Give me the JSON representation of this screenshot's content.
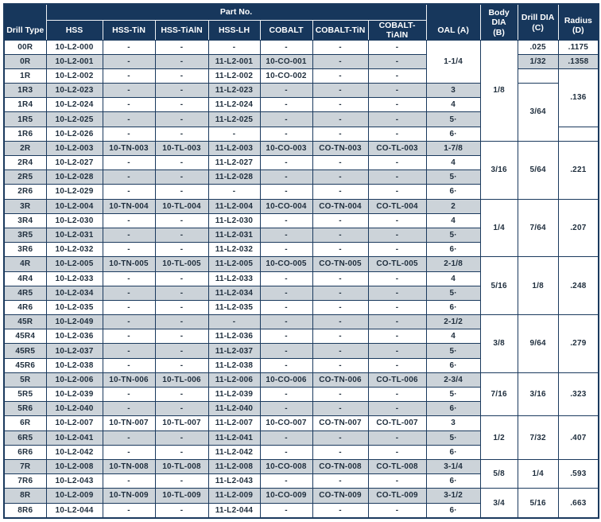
{
  "colors": {
    "header_bg": "#17375C",
    "stripe": "#CCD3D9",
    "grid": "#1B3A5E",
    "text": "#1F2E3D",
    "header_text": "#FFFFFF"
  },
  "table": {
    "header": {
      "drill_type": "Drill Type",
      "part_group": "Part No.",
      "part_columns": [
        "HSS",
        "HSS-TiN",
        "HSS-TiAlN",
        "HSS-LH",
        "COBALT",
        "COBALT-TiN",
        "COBALT-TiAlN"
      ],
      "oal": "OAL (A)",
      "body_dia_line1": "Body DIA",
      "body_dia_line2": "(B)",
      "drill_dia_line1": "Drill DIA",
      "drill_dia_line2": "(C)",
      "radius": "Radius (D)"
    },
    "rows": [
      {
        "type": "00R",
        "parts": [
          "10-L2-000",
          "-",
          "-",
          "-",
          "-",
          "-",
          "-"
        ],
        "oal": [
          "1-1/4",
          3
        ],
        "body": [
          "1/8",
          7
        ],
        "drill": ".025",
        "radius": ".1175"
      },
      {
        "type": "0R",
        "parts": [
          "10-L2-001",
          "-",
          "-",
          "11-L2-001",
          "10-CO-001",
          "-",
          "-"
        ],
        "drill": "1/32",
        "radius": ".1358"
      },
      {
        "type": "1R",
        "parts": [
          "10-L2-002",
          "-",
          "-",
          "11-L2-002",
          "10-CO-002",
          "-",
          "-"
        ],
        "drill": "",
        "radius": [
          ".136",
          4
        ]
      },
      {
        "type": "1R3",
        "parts": [
          "10-L2-023",
          "-",
          "-",
          "11-L2-023",
          "-",
          "-",
          "-"
        ],
        "oal": "3",
        "drill": [
          "3/64",
          4
        ]
      },
      {
        "type": "1R4",
        "parts": [
          "10-L2-024",
          "-",
          "-",
          "11-L2-024",
          "-",
          "-",
          "-"
        ],
        "oal": "4"
      },
      {
        "type": "1R5",
        "parts": [
          "10-L2-025",
          "-",
          "-",
          "11-L2-025",
          "-",
          "-",
          "-"
        ],
        "oal": "5·"
      },
      {
        "type": "1R6",
        "parts": [
          "10-L2-026",
          "-",
          "-",
          "-",
          "-",
          "-",
          "-"
        ],
        "oal": "6·",
        "radius": ""
      },
      {
        "type": "2R",
        "parts": [
          "10-L2-003",
          "10-TN-003",
          "10-TL-003",
          "11-L2-003",
          "10-CO-003",
          "CO-TN-003",
          "CO-TL-003"
        ],
        "oal": "1-7/8",
        "body": [
          "3/16",
          4
        ],
        "drill": [
          "5/64",
          4
        ],
        "radius": [
          ".221",
          4
        ]
      },
      {
        "type": "2R4",
        "parts": [
          "10-L2-027",
          "-",
          "-",
          "11-L2-027",
          "-",
          "-",
          "-"
        ],
        "oal": "4"
      },
      {
        "type": "2R5",
        "parts": [
          "10-L2-028",
          "-",
          "-",
          "11-L2-028",
          "-",
          "-",
          "-"
        ],
        "oal": "5·"
      },
      {
        "type": "2R6",
        "parts": [
          "10-L2-029",
          "-",
          "-",
          "-",
          "-",
          "-",
          "-"
        ],
        "oal": "6·"
      },
      {
        "type": "3R",
        "parts": [
          "10-L2-004",
          "10-TN-004",
          "10-TL-004",
          "11-L2-004",
          "10-CO-004",
          "CO-TN-004",
          "CO-TL-004"
        ],
        "oal": "2",
        "body": [
          "1/4",
          4
        ],
        "drill": [
          "7/64",
          4
        ],
        "radius": [
          ".207",
          4
        ]
      },
      {
        "type": "3R4",
        "parts": [
          "10-L2-030",
          "-",
          "-",
          "11-L2-030",
          "-",
          "-",
          "-"
        ],
        "oal": "4"
      },
      {
        "type": "3R5",
        "parts": [
          "10-L2-031",
          "-",
          "-",
          "11-L2-031",
          "-",
          "-",
          "-"
        ],
        "oal": "5·"
      },
      {
        "type": "3R6",
        "parts": [
          "10-L2-032",
          "-",
          "-",
          "11-L2-032",
          "-",
          "-",
          "-"
        ],
        "oal": "6·"
      },
      {
        "type": "4R",
        "parts": [
          "10-L2-005",
          "10-TN-005",
          "10-TL-005",
          "11-L2-005",
          "10-CO-005",
          "CO-TN-005",
          "CO-TL-005"
        ],
        "oal": "2-1/8",
        "body": [
          "5/16",
          4
        ],
        "drill": [
          "1/8",
          4
        ],
        "radius": [
          ".248",
          4
        ]
      },
      {
        "type": "4R4",
        "parts": [
          "10-L2-033",
          "-",
          "-",
          "11-L2-033",
          "-",
          "-",
          "-"
        ],
        "oal": "4"
      },
      {
        "type": "4R5",
        "parts": [
          "10-L2-034",
          "-",
          "-",
          "11-L2-034",
          "-",
          "-",
          "-"
        ],
        "oal": "5·"
      },
      {
        "type": "4R6",
        "parts": [
          "10-L2-035",
          "-",
          "-",
          "11-L2-035",
          "-",
          "-",
          "-"
        ],
        "oal": "6·"
      },
      {
        "type": "45R",
        "parts": [
          "10-L2-049",
          "-",
          "-",
          "-",
          "-",
          "-",
          "-"
        ],
        "oal": "2-1/2",
        "body": [
          "3/8",
          4
        ],
        "drill": [
          "9/64",
          4
        ],
        "radius": [
          ".279",
          4
        ]
      },
      {
        "type": "45R4",
        "parts": [
          "10-L2-036",
          "-",
          "-",
          "11-L2-036",
          "-",
          "-",
          "-"
        ],
        "oal": "4"
      },
      {
        "type": "45R5",
        "parts": [
          "10-L2-037",
          "-",
          "-",
          "11-L2-037",
          "-",
          "-",
          "-"
        ],
        "oal": "5·"
      },
      {
        "type": "45R6",
        "parts": [
          "10-L2-038",
          "-",
          "-",
          "11-L2-038",
          "-",
          "-",
          "-"
        ],
        "oal": "6·"
      },
      {
        "type": "5R",
        "parts": [
          "10-L2-006",
          "10-TN-006",
          "10-TL-006",
          "11-L2-006",
          "10-CO-006",
          "CO-TN-006",
          "CO-TL-006"
        ],
        "oal": "2-3/4",
        "body": [
          "7/16",
          3
        ],
        "drill": [
          "3/16",
          3
        ],
        "radius": [
          ".323",
          3
        ]
      },
      {
        "type": "5R5",
        "parts": [
          "10-L2-039",
          "-",
          "-",
          "11-L2-039",
          "-",
          "-",
          "-"
        ],
        "oal": "5·"
      },
      {
        "type": "5R6",
        "parts": [
          "10-L2-040",
          "-",
          "-",
          "11-L2-040",
          "-",
          "-",
          "-"
        ],
        "oal": "6·"
      },
      {
        "type": "6R",
        "parts": [
          "10-L2-007",
          "10-TN-007",
          "10-TL-007",
          "11-L2-007",
          "10-CO-007",
          "CO-TN-007",
          "CO-TL-007"
        ],
        "oal": "3",
        "body": [
          "1/2",
          3
        ],
        "drill": [
          "7/32",
          3
        ],
        "radius": [
          ".407",
          3
        ]
      },
      {
        "type": "6R5",
        "parts": [
          "10-L2-041",
          "-",
          "-",
          "11-L2-041",
          "-",
          "-",
          "-"
        ],
        "oal": "5·"
      },
      {
        "type": "6R6",
        "parts": [
          "10-L2-042",
          "-",
          "-",
          "11-L2-042",
          "-",
          "-",
          "-"
        ],
        "oal": "6·"
      },
      {
        "type": "7R",
        "parts": [
          "10-L2-008",
          "10-TN-008",
          "10-TL-008",
          "11-L2-008",
          "10-CO-008",
          "CO-TN-008",
          "CO-TL-008"
        ],
        "oal": "3-1/4",
        "body": [
          "5/8",
          2
        ],
        "drill": [
          "1/4",
          2
        ],
        "radius": [
          ".593",
          2
        ]
      },
      {
        "type": "7R6",
        "parts": [
          "10-L2-043",
          "-",
          "-",
          "11-L2-043",
          "-",
          "-",
          "-"
        ],
        "oal": "6·"
      },
      {
        "type": "8R",
        "parts": [
          "10-L2-009",
          "10-TN-009",
          "10-TL-009",
          "11-L2-009",
          "10-CO-009",
          "CO-TN-009",
          "CO-TL-009"
        ],
        "oal": "3-1/2",
        "body": [
          "3/4",
          2
        ],
        "drill": [
          "5/16",
          2
        ],
        "radius": [
          ".663",
          2
        ]
      },
      {
        "type": "8R6",
        "parts": [
          "10-L2-044",
          "-",
          "-",
          "11-L2-044",
          "-",
          "-",
          "-"
        ],
        "oal": "6·"
      }
    ]
  }
}
